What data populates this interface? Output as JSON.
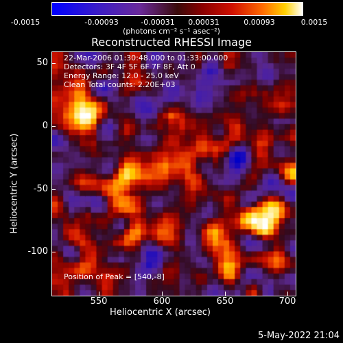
{
  "colorbar": {
    "tick_labels": [
      "-0.0015",
      "-0.00093",
      "-0.00031",
      "0.00031",
      "0.00093",
      "0.0015"
    ],
    "unit_label": "(photons cm⁻² s⁻¹ asec⁻²)"
  },
  "plot_title": "Reconstructed RHESSI Image",
  "info": {
    "time_range": "22-Mar-2006 01:30:48.000 to 01:33:00.000",
    "detectors": "Detectors: 3F 4F 5F 6F 7F 8F, Att 0",
    "energy": "Energy Range: 12.0 - 25.0 keV",
    "clean": "Clean    Total counts: 2.20E+03",
    "peak": "Position of Peak = [540,-8]"
  },
  "axes": {
    "x_label": "Heliocentric X (arcsec)",
    "y_label": "Heliocentric Y (arcsec)",
    "x_ticks": [
      "550",
      "600",
      "650",
      "700"
    ],
    "y_ticks": [
      "50",
      "0",
      "-50",
      "-100"
    ]
  },
  "footer": {
    "date": "5-May-2022 21:04"
  },
  "colors": {
    "background": "#000000",
    "text": "#ffffff"
  }
}
